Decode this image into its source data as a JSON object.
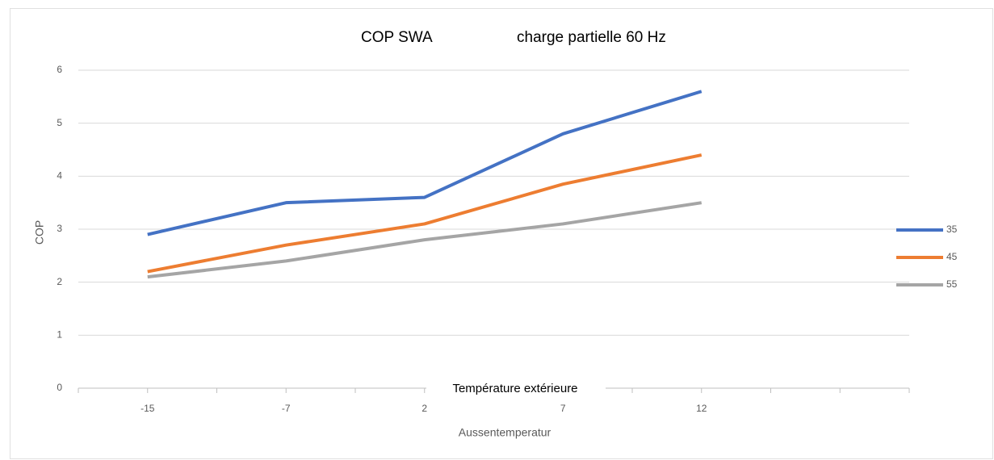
{
  "chart_data": {
    "type": "line",
    "title": "COP SWA",
    "subtitle": "charge partielle 60 Hz",
    "annotations": [
      "Température extérieure"
    ],
    "x_label": "Aussentemperatur",
    "y_label": "COP",
    "categories": [
      "-15",
      "-7",
      "2",
      "7",
      "12",
      null
    ],
    "series": [
      {
        "name": "35",
        "color": "#4472c4",
        "values": [
          2.9,
          3.5,
          3.6,
          4.8,
          5.6,
          null
        ]
      },
      {
        "name": "45",
        "color": "#ed7d31",
        "values": [
          2.2,
          2.7,
          3.1,
          3.85,
          4.4,
          null
        ]
      },
      {
        "name": "55",
        "color": "#a5a5a5",
        "values": [
          2.1,
          2.4,
          2.8,
          3.1,
          3.5,
          null
        ]
      }
    ],
    "ylim": [
      0,
      6
    ],
    "yticks": [
      0,
      1,
      2,
      3,
      4,
      5,
      6
    ],
    "grid": true,
    "legend": "right"
  }
}
